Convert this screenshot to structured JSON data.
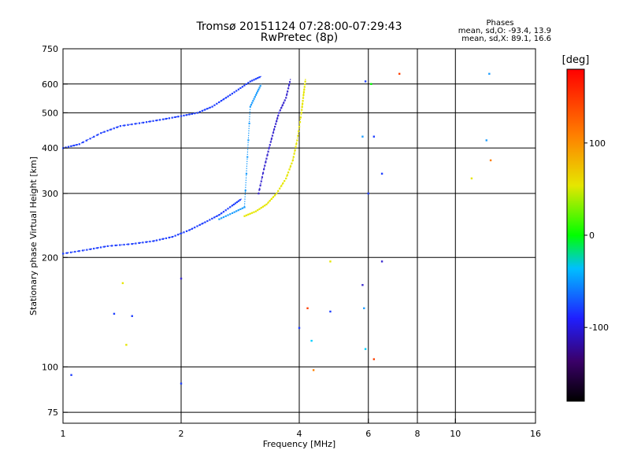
{
  "chart_data": {
    "type": "scatter",
    "title": "Tromsø 20151124 07:28:00-07:29:43",
    "subtitle": "RwPretec (8p)",
    "xlabel": "Frequency [MHz]",
    "ylabel": "Stationary phase Virtual Height [km]",
    "xscale": "log",
    "yscale": "log",
    "xlim": [
      1,
      16
    ],
    "ylim": [
      70,
      750
    ],
    "x_ticks": [
      1,
      2,
      4,
      6,
      8,
      10,
      16
    ],
    "y_ticks": [
      75,
      100,
      200,
      300,
      400,
      500,
      600,
      750
    ],
    "grid": true,
    "colorbar": {
      "label": "[deg]",
      "range": [
        -180,
        180
      ],
      "ticks": [
        -100,
        0,
        100
      ]
    },
    "phase_stats": {
      "title": "Phases",
      "o_line": "mean, sd,O: -93.4, 13.9",
      "x_line": "mean, sd,X:  89.1, 16.6"
    },
    "traces": [
      {
        "name": "",
        "color": "#1f3fff",
        "phase": -110,
        "points": [
          [
            1.0,
            205
          ],
          [
            1.15,
            210
          ],
          [
            1.3,
            215
          ],
          [
            1.5,
            218
          ],
          [
            1.7,
            222
          ],
          [
            1.9,
            228
          ],
          [
            2.1,
            238
          ],
          [
            2.3,
            250
          ],
          [
            2.5,
            262
          ],
          [
            2.7,
            278
          ],
          [
            2.85,
            290
          ]
        ]
      },
      {
        "name": "",
        "color": "#1f3fff",
        "phase": -110,
        "points": [
          [
            1.0,
            400
          ],
          [
            1.1,
            410
          ],
          [
            1.25,
            440
          ],
          [
            1.4,
            460
          ],
          [
            1.6,
            470
          ],
          [
            1.8,
            480
          ],
          [
            2.0,
            490
          ],
          [
            2.2,
            500
          ],
          [
            2.4,
            520
          ],
          [
            2.6,
            550
          ],
          [
            2.8,
            580
          ],
          [
            3.0,
            610
          ],
          [
            3.2,
            630
          ]
        ]
      },
      {
        "name": "",
        "color": "#3a2ad0",
        "phase": -125,
        "points": [
          [
            3.15,
            300
          ],
          [
            3.25,
            350
          ],
          [
            3.35,
            400
          ],
          [
            3.45,
            450
          ],
          [
            3.55,
            500
          ],
          [
            3.7,
            550
          ],
          [
            3.8,
            620
          ]
        ]
      },
      {
        "name": "",
        "color": "#e6e600",
        "phase": 95,
        "points": [
          [
            2.9,
            260
          ],
          [
            3.1,
            268
          ],
          [
            3.3,
            280
          ],
          [
            3.5,
            300
          ],
          [
            3.7,
            330
          ],
          [
            3.85,
            370
          ],
          [
            3.95,
            420
          ],
          [
            4.05,
            500
          ],
          [
            4.1,
            560
          ],
          [
            4.15,
            620
          ]
        ]
      },
      {
        "name": "",
        "color": "#1f9fff",
        "phase": -80,
        "points": [
          [
            2.5,
            255
          ],
          [
            2.7,
            265
          ],
          [
            2.9,
            275
          ],
          [
            3.0,
            520
          ],
          [
            3.1,
            560
          ],
          [
            3.2,
            600
          ]
        ]
      }
    ],
    "scatter_points": [
      {
        "x": 1.05,
        "y": 95,
        "color": "#1f3fff"
      },
      {
        "x": 1.35,
        "y": 140,
        "color": "#1f3fff"
      },
      {
        "x": 1.42,
        "y": 170,
        "color": "#e6e600"
      },
      {
        "x": 1.45,
        "y": 115,
        "color": "#e6e600"
      },
      {
        "x": 1.5,
        "y": 138,
        "color": "#1f3fff"
      },
      {
        "x": 2.0,
        "y": 90,
        "color": "#1f3fff"
      },
      {
        "x": 2.0,
        "y": 175,
        "color": "#3a2ad0"
      },
      {
        "x": 4.0,
        "y": 128,
        "color": "#1f3fff"
      },
      {
        "x": 4.2,
        "y": 145,
        "color": "#ff3f00"
      },
      {
        "x": 4.3,
        "y": 118,
        "color": "#00cfff"
      },
      {
        "x": 4.35,
        "y": 98,
        "color": "#ff7f00"
      },
      {
        "x": 4.8,
        "y": 195,
        "color": "#e6e600"
      },
      {
        "x": 4.8,
        "y": 142,
        "color": "#1f3fff"
      },
      {
        "x": 5.8,
        "y": 168,
        "color": "#3a2ad0"
      },
      {
        "x": 5.85,
        "y": 145,
        "color": "#1f9fff"
      },
      {
        "x": 5.9,
        "y": 112,
        "color": "#00cfff"
      },
      {
        "x": 6.2,
        "y": 105,
        "color": "#ff3f00"
      },
      {
        "x": 6.5,
        "y": 195,
        "color": "#3a2ad0"
      },
      {
        "x": 6.5,
        "y": 340,
        "color": "#1f3fff"
      },
      {
        "x": 7.2,
        "y": 640,
        "color": "#ff3f00"
      },
      {
        "x": 5.9,
        "y": 610,
        "color": "#1f3fff"
      },
      {
        "x": 6.1,
        "y": 600,
        "color": "#00ff00"
      },
      {
        "x": 5.8,
        "y": 430,
        "color": "#1f9fff"
      },
      {
        "x": 6.2,
        "y": 430,
        "color": "#1f3fff"
      },
      {
        "x": 6.0,
        "y": 300,
        "color": "#1f3fff"
      },
      {
        "x": 12.2,
        "y": 640,
        "color": "#1f9fff"
      },
      {
        "x": 12.0,
        "y": 420,
        "color": "#1f9fff"
      },
      {
        "x": 12.3,
        "y": 370,
        "color": "#ff7f00"
      },
      {
        "x": 11.0,
        "y": 330,
        "color": "#e6e600"
      }
    ]
  }
}
